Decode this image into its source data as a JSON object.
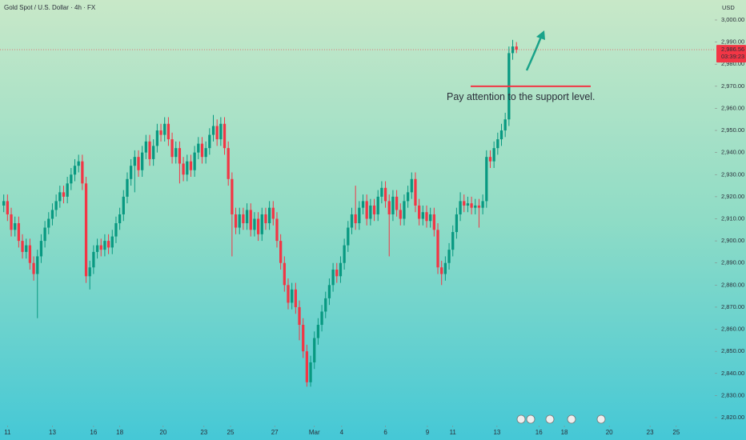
{
  "chart_data": {
    "type": "candlestick",
    "title": "Gold Spot / U.S. Dollar · 4h · FX",
    "currency": "USD",
    "up_color": "#089981",
    "down_color": "#f23645",
    "xlim": [
      -1,
      190
    ],
    "ylim": [
      2817.1,
      3009.05
    ],
    "yticks": [
      {
        "value": 3000,
        "label": "3,000.00"
      },
      {
        "value": 2990,
        "label": "2,990.00"
      },
      {
        "value": 2980,
        "label": "2,980.00"
      },
      {
        "value": 2970,
        "label": "2,970.00"
      },
      {
        "value": 2960,
        "label": "2,960.00"
      },
      {
        "value": 2950,
        "label": "2,950.00"
      },
      {
        "value": 2940,
        "label": "2,940.00"
      },
      {
        "value": 2930,
        "label": "2,930.00"
      },
      {
        "value": 2920,
        "label": "2,920.00"
      },
      {
        "value": 2910,
        "label": "2,910.00"
      },
      {
        "value": 2900,
        "label": "2,900.00"
      },
      {
        "value": 2890,
        "label": "2,890.00"
      },
      {
        "value": 2880,
        "label": "2,880.00"
      },
      {
        "value": 2870,
        "label": "2,870.00"
      },
      {
        "value": 2860,
        "label": "2,860.00"
      },
      {
        "value": 2850,
        "label": "2,850.00"
      },
      {
        "value": 2840,
        "label": "2,840.00"
      },
      {
        "value": 2830,
        "label": "2,830.00"
      },
      {
        "value": 2820,
        "label": "2,820.00"
      }
    ],
    "xticks": [
      {
        "value": 1,
        "label": "11"
      },
      {
        "value": 13,
        "label": "13"
      },
      {
        "value": 24,
        "label": "16"
      },
      {
        "value": 31,
        "label": "18"
      },
      {
        "value": 42.6,
        "label": "20"
      },
      {
        "value": 53.5,
        "label": "23"
      },
      {
        "value": 60.6,
        "label": "25"
      },
      {
        "value": 72.4,
        "label": "27"
      },
      {
        "value": 83,
        "label": "Mar"
      },
      {
        "value": 90.3,
        "label": "4"
      },
      {
        "value": 102,
        "label": "6"
      },
      {
        "value": 113.2,
        "label": "9"
      },
      {
        "value": 120,
        "label": "11"
      },
      {
        "value": 131.8,
        "label": "13"
      },
      {
        "value": 143,
        "label": "16"
      },
      {
        "value": 149.8,
        "label": "18"
      },
      {
        "value": 161.8,
        "label": "20"
      },
      {
        "value": 172.7,
        "label": "23"
      },
      {
        "value": 179.7,
        "label": "25"
      }
    ],
    "candles": [
      [
        2916,
        2921,
        2913,
        2918
      ],
      [
        2918,
        2921,
        2909,
        2912
      ],
      [
        2912,
        2915,
        2902,
        2905
      ],
      [
        2905,
        2911,
        2902,
        2908
      ],
      [
        2908,
        2911,
        2897,
        2900
      ],
      [
        2900,
        2903,
        2892,
        2895
      ],
      [
        2895,
        2901,
        2892,
        2898
      ],
      [
        2898,
        2901,
        2887,
        2890
      ],
      [
        2890,
        2893,
        2882,
        2885
      ],
      [
        2885,
        2896,
        2865,
        2893
      ],
      [
        2893,
        2903,
        2890,
        2900
      ],
      [
        2900,
        2909,
        2897,
        2906
      ],
      [
        2906,
        2913,
        2903,
        2910
      ],
      [
        2910,
        2917,
        2907,
        2914
      ],
      [
        2914,
        2921,
        2911,
        2918
      ],
      [
        2918,
        2925,
        2915,
        2922
      ],
      [
        2922,
        2925,
        2917,
        2920
      ],
      [
        2920,
        2929,
        2917,
        2926
      ],
      [
        2926,
        2933,
        2923,
        2930
      ],
      [
        2930,
        2937,
        2927,
        2934
      ],
      [
        2934,
        2939,
        2931,
        2936
      ],
      [
        2936,
        2939,
        2923,
        2926
      ],
      [
        2926,
        2929,
        2881,
        2884
      ],
      [
        2884,
        2891,
        2878,
        2888
      ],
      [
        2888,
        2898,
        2885,
        2895
      ],
      [
        2895,
        2901,
        2892,
        2898
      ],
      [
        2898,
        2901,
        2893,
        2896
      ],
      [
        2896,
        2903,
        2893,
        2900
      ],
      [
        2900,
        2903,
        2894,
        2897
      ],
      [
        2897,
        2905,
        2894,
        2902
      ],
      [
        2902,
        2911,
        2899,
        2908
      ],
      [
        2908,
        2915,
        2905,
        2912
      ],
      [
        2912,
        2923,
        2909,
        2920
      ],
      [
        2920,
        2931,
        2917,
        2928
      ],
      [
        2928,
        2937,
        2925,
        2934
      ],
      [
        2934,
        2941,
        2922,
        2938
      ],
      [
        2938,
        2941,
        2929,
        2932
      ],
      [
        2932,
        2943,
        2929,
        2940
      ],
      [
        2940,
        2948,
        2937,
        2945
      ],
      [
        2945,
        2948,
        2934,
        2937
      ],
      [
        2937,
        2946,
        2934,
        2943
      ],
      [
        2943,
        2953,
        2940,
        2950
      ],
      [
        2950,
        2953,
        2945,
        2948
      ],
      [
        2948,
        2956,
        2945,
        2953
      ],
      [
        2953,
        2956,
        2943,
        2946
      ],
      [
        2946,
        2949,
        2935,
        2938
      ],
      [
        2938,
        2945,
        2935,
        2942
      ],
      [
        2942,
        2945,
        2926,
        2935
      ],
      [
        2935,
        2938,
        2927,
        2930
      ],
      [
        2930,
        2939,
        2927,
        2936
      ],
      [
        2936,
        2939,
        2929,
        2932
      ],
      [
        2932,
        2943,
        2929,
        2940
      ],
      [
        2940,
        2947,
        2937,
        2944
      ],
      [
        2944,
        2947,
        2935,
        2938
      ],
      [
        2938,
        2945,
        2935,
        2942
      ],
      [
        2942,
        2951,
        2939,
        2948
      ],
      [
        2948,
        2957,
        2945,
        2952
      ],
      [
        2952,
        2955,
        2943,
        2946
      ],
      [
        2946,
        2956,
        2943,
        2953
      ],
      [
        2953,
        2956,
        2939,
        2942
      ],
      [
        2942,
        2945,
        2925,
        2928
      ],
      [
        2928,
        2931,
        2893,
        2912
      ],
      [
        2912,
        2915,
        2903,
        2906
      ],
      [
        2906,
        2915,
        2903,
        2912
      ],
      [
        2912,
        2915,
        2905,
        2908
      ],
      [
        2908,
        2917,
        2905,
        2914
      ],
      [
        2914,
        2917,
        2902,
        2905
      ],
      [
        2905,
        2913,
        2902,
        2910
      ],
      [
        2910,
        2913,
        2900,
        2903
      ],
      [
        2903,
        2915,
        2900,
        2912
      ],
      [
        2912,
        2915,
        2905,
        2908
      ],
      [
        2908,
        2918,
        2905,
        2915
      ],
      [
        2915,
        2918,
        2907,
        2910
      ],
      [
        2910,
        2913,
        2897,
        2900
      ],
      [
        2900,
        2903,
        2887,
        2890
      ],
      [
        2890,
        2893,
        2877,
        2880
      ],
      [
        2880,
        2883,
        2869,
        2872
      ],
      [
        2872,
        2881,
        2869,
        2878
      ],
      [
        2878,
        2881,
        2867,
        2870
      ],
      [
        2870,
        2873,
        2855,
        2862
      ],
      [
        2862,
        2865,
        2847,
        2850
      ],
      [
        2850,
        2853,
        2834,
        2836
      ],
      [
        2836,
        2848,
        2834,
        2845
      ],
      [
        2845,
        2859,
        2842,
        2856
      ],
      [
        2856,
        2865,
        2853,
        2862
      ],
      [
        2862,
        2871,
        2859,
        2868
      ],
      [
        2868,
        2877,
        2865,
        2874
      ],
      [
        2874,
        2883,
        2871,
        2880
      ],
      [
        2880,
        2890,
        2877,
        2887
      ],
      [
        2887,
        2890,
        2881,
        2884
      ],
      [
        2884,
        2893,
        2881,
        2890
      ],
      [
        2890,
        2901,
        2887,
        2898
      ],
      [
        2898,
        2909,
        2895,
        2906
      ],
      [
        2906,
        2915,
        2903,
        2912
      ],
      [
        2912,
        2925,
        2905,
        2908
      ],
      [
        2908,
        2918,
        2905,
        2915
      ],
      [
        2915,
        2921,
        2912,
        2918
      ],
      [
        2918,
        2921,
        2907,
        2910
      ],
      [
        2910,
        2919,
        2907,
        2916
      ],
      [
        2916,
        2919,
        2909,
        2912
      ],
      [
        2912,
        2923,
        2909,
        2920
      ],
      [
        2920,
        2927,
        2917,
        2924
      ],
      [
        2924,
        2927,
        2915,
        2918
      ],
      [
        2918,
        2921,
        2893,
        2912
      ],
      [
        2912,
        2923,
        2909,
        2920
      ],
      [
        2920,
        2923,
        2911,
        2914
      ],
      [
        2914,
        2917,
        2907,
        2910
      ],
      [
        2910,
        2921,
        2907,
        2918
      ],
      [
        2918,
        2925,
        2915,
        2922
      ],
      [
        2922,
        2931,
        2919,
        2928
      ],
      [
        2928,
        2931,
        2913,
        2916
      ],
      [
        2916,
        2919,
        2907,
        2910
      ],
      [
        2910,
        2916,
        2907,
        2913
      ],
      [
        2913,
        2916,
        2906,
        2909
      ],
      [
        2909,
        2915,
        2906,
        2912
      ],
      [
        2912,
        2915,
        2902,
        2905
      ],
      [
        2905,
        2908,
        2885,
        2888
      ],
      [
        2888,
        2891,
        2880,
        2885
      ],
      [
        2885,
        2893,
        2882,
        2890
      ],
      [
        2890,
        2899,
        2887,
        2896
      ],
      [
        2896,
        2907,
        2893,
        2904
      ],
      [
        2904,
        2915,
        2901,
        2912
      ],
      [
        2912,
        2922,
        2909,
        2918
      ],
      [
        2918,
        2921,
        2913,
        2916
      ],
      [
        2916,
        2920,
        2913,
        2917
      ],
      [
        2917,
        2920,
        2912,
        2915
      ],
      [
        2915,
        2919,
        2912,
        2916
      ],
      [
        2916,
        2919,
        2906,
        2915
      ],
      [
        2915,
        2921,
        2912,
        2918
      ],
      [
        2918,
        2941,
        2915,
        2938
      ],
      [
        2938,
        2941,
        2933,
        2936
      ],
      [
        2936,
        2945,
        2933,
        2942
      ],
      [
        2942,
        2949,
        2939,
        2946
      ],
      [
        2946,
        2953,
        2943,
        2950
      ],
      [
        2950,
        2958,
        2947,
        2955
      ],
      [
        2955,
        2988,
        2952,
        2985
      ],
      [
        2985,
        2991,
        2982,
        2988
      ],
      [
        2988,
        2990,
        2985,
        2986.56
      ]
    ],
    "last_price": 2986.56,
    "last_price_label": "2,986.56",
    "countdown": "03:39:23",
    "support_level": 2970,
    "annotation": "Pay attention to the support level."
  }
}
